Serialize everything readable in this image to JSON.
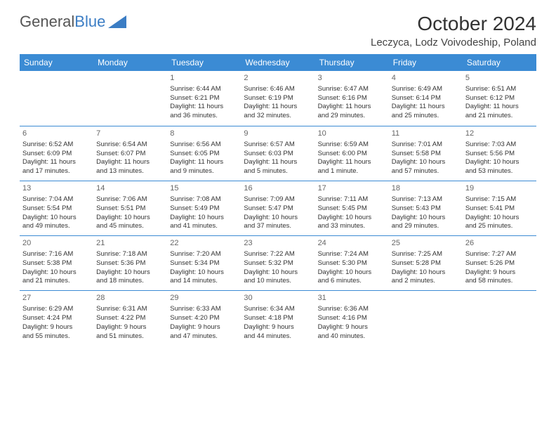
{
  "logo": {
    "text1": "General",
    "text2": "Blue"
  },
  "title": "October 2024",
  "location": "Leczyca, Lodz Voivodeship, Poland",
  "colors": {
    "header_bg": "#3b8bd4",
    "header_text": "#ffffff",
    "border": "#3b8bd4",
    "logo_blue": "#3b7dc4",
    "text": "#333333"
  },
  "day_names": [
    "Sunday",
    "Monday",
    "Tuesday",
    "Wednesday",
    "Thursday",
    "Friday",
    "Saturday"
  ],
  "weeks": [
    [
      null,
      null,
      {
        "n": "1",
        "sr": "Sunrise: 6:44 AM",
        "ss": "Sunset: 6:21 PM",
        "d1": "Daylight: 11 hours",
        "d2": "and 36 minutes."
      },
      {
        "n": "2",
        "sr": "Sunrise: 6:46 AM",
        "ss": "Sunset: 6:19 PM",
        "d1": "Daylight: 11 hours",
        "d2": "and 32 minutes."
      },
      {
        "n": "3",
        "sr": "Sunrise: 6:47 AM",
        "ss": "Sunset: 6:16 PM",
        "d1": "Daylight: 11 hours",
        "d2": "and 29 minutes."
      },
      {
        "n": "4",
        "sr": "Sunrise: 6:49 AM",
        "ss": "Sunset: 6:14 PM",
        "d1": "Daylight: 11 hours",
        "d2": "and 25 minutes."
      },
      {
        "n": "5",
        "sr": "Sunrise: 6:51 AM",
        "ss": "Sunset: 6:12 PM",
        "d1": "Daylight: 11 hours",
        "d2": "and 21 minutes."
      }
    ],
    [
      {
        "n": "6",
        "sr": "Sunrise: 6:52 AM",
        "ss": "Sunset: 6:09 PM",
        "d1": "Daylight: 11 hours",
        "d2": "and 17 minutes."
      },
      {
        "n": "7",
        "sr": "Sunrise: 6:54 AM",
        "ss": "Sunset: 6:07 PM",
        "d1": "Daylight: 11 hours",
        "d2": "and 13 minutes."
      },
      {
        "n": "8",
        "sr": "Sunrise: 6:56 AM",
        "ss": "Sunset: 6:05 PM",
        "d1": "Daylight: 11 hours",
        "d2": "and 9 minutes."
      },
      {
        "n": "9",
        "sr": "Sunrise: 6:57 AM",
        "ss": "Sunset: 6:03 PM",
        "d1": "Daylight: 11 hours",
        "d2": "and 5 minutes."
      },
      {
        "n": "10",
        "sr": "Sunrise: 6:59 AM",
        "ss": "Sunset: 6:00 PM",
        "d1": "Daylight: 11 hours",
        "d2": "and 1 minute."
      },
      {
        "n": "11",
        "sr": "Sunrise: 7:01 AM",
        "ss": "Sunset: 5:58 PM",
        "d1": "Daylight: 10 hours",
        "d2": "and 57 minutes."
      },
      {
        "n": "12",
        "sr": "Sunrise: 7:03 AM",
        "ss": "Sunset: 5:56 PM",
        "d1": "Daylight: 10 hours",
        "d2": "and 53 minutes."
      }
    ],
    [
      {
        "n": "13",
        "sr": "Sunrise: 7:04 AM",
        "ss": "Sunset: 5:54 PM",
        "d1": "Daylight: 10 hours",
        "d2": "and 49 minutes."
      },
      {
        "n": "14",
        "sr": "Sunrise: 7:06 AM",
        "ss": "Sunset: 5:51 PM",
        "d1": "Daylight: 10 hours",
        "d2": "and 45 minutes."
      },
      {
        "n": "15",
        "sr": "Sunrise: 7:08 AM",
        "ss": "Sunset: 5:49 PM",
        "d1": "Daylight: 10 hours",
        "d2": "and 41 minutes."
      },
      {
        "n": "16",
        "sr": "Sunrise: 7:09 AM",
        "ss": "Sunset: 5:47 PM",
        "d1": "Daylight: 10 hours",
        "d2": "and 37 minutes."
      },
      {
        "n": "17",
        "sr": "Sunrise: 7:11 AM",
        "ss": "Sunset: 5:45 PM",
        "d1": "Daylight: 10 hours",
        "d2": "and 33 minutes."
      },
      {
        "n": "18",
        "sr": "Sunrise: 7:13 AM",
        "ss": "Sunset: 5:43 PM",
        "d1": "Daylight: 10 hours",
        "d2": "and 29 minutes."
      },
      {
        "n": "19",
        "sr": "Sunrise: 7:15 AM",
        "ss": "Sunset: 5:41 PM",
        "d1": "Daylight: 10 hours",
        "d2": "and 25 minutes."
      }
    ],
    [
      {
        "n": "20",
        "sr": "Sunrise: 7:16 AM",
        "ss": "Sunset: 5:38 PM",
        "d1": "Daylight: 10 hours",
        "d2": "and 21 minutes."
      },
      {
        "n": "21",
        "sr": "Sunrise: 7:18 AM",
        "ss": "Sunset: 5:36 PM",
        "d1": "Daylight: 10 hours",
        "d2": "and 18 minutes."
      },
      {
        "n": "22",
        "sr": "Sunrise: 7:20 AM",
        "ss": "Sunset: 5:34 PM",
        "d1": "Daylight: 10 hours",
        "d2": "and 14 minutes."
      },
      {
        "n": "23",
        "sr": "Sunrise: 7:22 AM",
        "ss": "Sunset: 5:32 PM",
        "d1": "Daylight: 10 hours",
        "d2": "and 10 minutes."
      },
      {
        "n": "24",
        "sr": "Sunrise: 7:24 AM",
        "ss": "Sunset: 5:30 PM",
        "d1": "Daylight: 10 hours",
        "d2": "and 6 minutes."
      },
      {
        "n": "25",
        "sr": "Sunrise: 7:25 AM",
        "ss": "Sunset: 5:28 PM",
        "d1": "Daylight: 10 hours",
        "d2": "and 2 minutes."
      },
      {
        "n": "26",
        "sr": "Sunrise: 7:27 AM",
        "ss": "Sunset: 5:26 PM",
        "d1": "Daylight: 9 hours",
        "d2": "and 58 minutes."
      }
    ],
    [
      {
        "n": "27",
        "sr": "Sunrise: 6:29 AM",
        "ss": "Sunset: 4:24 PM",
        "d1": "Daylight: 9 hours",
        "d2": "and 55 minutes."
      },
      {
        "n": "28",
        "sr": "Sunrise: 6:31 AM",
        "ss": "Sunset: 4:22 PM",
        "d1": "Daylight: 9 hours",
        "d2": "and 51 minutes."
      },
      {
        "n": "29",
        "sr": "Sunrise: 6:33 AM",
        "ss": "Sunset: 4:20 PM",
        "d1": "Daylight: 9 hours",
        "d2": "and 47 minutes."
      },
      {
        "n": "30",
        "sr": "Sunrise: 6:34 AM",
        "ss": "Sunset: 4:18 PM",
        "d1": "Daylight: 9 hours",
        "d2": "and 44 minutes."
      },
      {
        "n": "31",
        "sr": "Sunrise: 6:36 AM",
        "ss": "Sunset: 4:16 PM",
        "d1": "Daylight: 9 hours",
        "d2": "and 40 minutes."
      },
      null,
      null
    ]
  ]
}
